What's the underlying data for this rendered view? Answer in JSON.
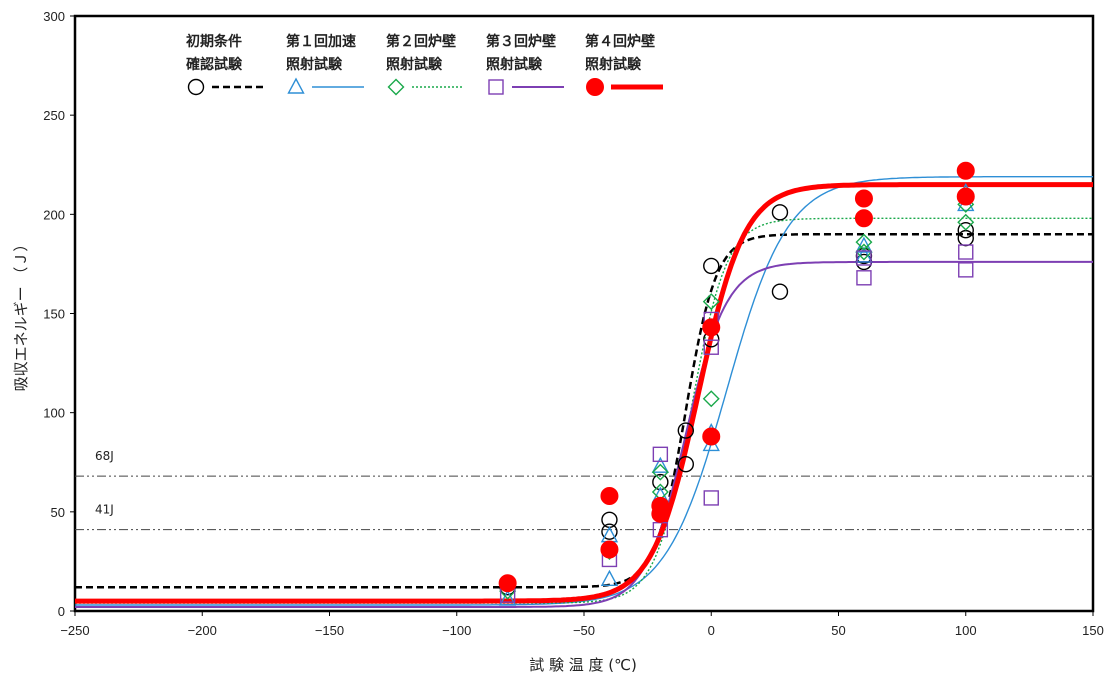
{
  "chart_data": {
    "type": "scatter",
    "xlabel": "試 験 温 度 (℃)",
    "ylabel": "吸収エネルギー （Ｊ）",
    "xlim": [
      -250,
      150
    ],
    "ylim": [
      0,
      300
    ],
    "xticks": [
      -250,
      -200,
      -150,
      -100,
      -50,
      0,
      50,
      100,
      150
    ],
    "yticks": [
      0,
      50,
      100,
      150,
      200,
      250,
      300
    ],
    "xtick_labels": [
      "−250",
      "−200",
      "−150",
      "−100",
      "−50",
      "0",
      "50",
      "100",
      "150"
    ],
    "ytick_labels": [
      "0",
      "50",
      "100",
      "150",
      "200",
      "250",
      "300"
    ],
    "grid": false,
    "legend_position": "top-left",
    "reference_lines": [
      {
        "label": "68J",
        "y": 68
      },
      {
        "label": "41J",
        "y": 41
      }
    ],
    "series": [
      {
        "name": "初期条件確認試験",
        "legend_line1": "初期条件",
        "legend_line2": "確認試験",
        "marker": "circle-open",
        "color": "#000000",
        "line_style": "dashed",
        "points": [
          [
            -80,
            14
          ],
          [
            -80,
            12
          ],
          [
            -40,
            46
          ],
          [
            -40,
            40
          ],
          [
            -20,
            65
          ],
          [
            -10,
            91
          ],
          [
            -10,
            74
          ],
          [
            0,
            174
          ],
          [
            0,
            137
          ],
          [
            27,
            201
          ],
          [
            27,
            161
          ],
          [
            60,
            176
          ],
          [
            60,
            179
          ],
          [
            100,
            192
          ],
          [
            100,
            188
          ]
        ],
        "fit": {
          "lower": 12,
          "upper": 190,
          "t0": -10,
          "c": 12
        }
      },
      {
        "name": "第１回加速照射試験",
        "legend_line1": "第１回加速",
        "legend_line2": "照射試験",
        "marker": "triangle-open",
        "color": "#2e8fd6",
        "line_style": "solid",
        "points": [
          [
            -80,
            6
          ],
          [
            -40,
            16
          ],
          [
            -40,
            38
          ],
          [
            -20,
            58
          ],
          [
            -20,
            73
          ],
          [
            0,
            84
          ],
          [
            0,
            90
          ],
          [
            60,
            184
          ],
          [
            60,
            179
          ],
          [
            100,
            211
          ],
          [
            100,
            205
          ]
        ],
        "fit": {
          "lower": 3,
          "upper": 219,
          "t0": 6,
          "c": 24
        }
      },
      {
        "name": "第２回炉壁照射試験",
        "legend_line1": "第２回炉壁",
        "legend_line2": "照射試験",
        "marker": "diamond-open",
        "color": "#19a84a",
        "line_style": "dotted",
        "points": [
          [
            -80,
            10
          ],
          [
            -40,
            30
          ],
          [
            -20,
            60
          ],
          [
            -20,
            70
          ],
          [
            0,
            156
          ],
          [
            0,
            107
          ],
          [
            60,
            186
          ],
          [
            60,
            181
          ],
          [
            100,
            205
          ],
          [
            100,
            196
          ]
        ],
        "fit": {
          "lower": 4,
          "upper": 198,
          "t0": -8,
          "c": 14
        }
      },
      {
        "name": "第３回炉壁照射試験",
        "legend_line1": "第３回炉壁",
        "legend_line2": "照射試験",
        "marker": "square-open",
        "color": "#7d3fb3",
        "line_style": "solid",
        "points": [
          [
            -80,
            8
          ],
          [
            -40,
            26
          ],
          [
            -20,
            79
          ],
          [
            -20,
            41
          ],
          [
            0,
            147
          ],
          [
            0,
            133
          ],
          [
            0,
            57
          ],
          [
            60,
            178
          ],
          [
            60,
            168
          ],
          [
            100,
            181
          ],
          [
            100,
            172
          ]
        ],
        "fit": {
          "lower": 2,
          "upper": 176,
          "t0": -10,
          "c": 16
        }
      },
      {
        "name": "第４回炉壁照射試験",
        "legend_line1": "第４回炉壁",
        "legend_line2": "照射試験",
        "marker": "circle-filled",
        "color": "#ff0000",
        "line_style": "solid-thick",
        "points": [
          [
            -80,
            14
          ],
          [
            -40,
            58
          ],
          [
            -40,
            31
          ],
          [
            -20,
            53
          ],
          [
            -20,
            49
          ],
          [
            0,
            143
          ],
          [
            0,
            88
          ],
          [
            60,
            208
          ],
          [
            60,
            198
          ],
          [
            100,
            222
          ],
          [
            100,
            209
          ]
        ],
        "fit": {
          "lower": 5,
          "upper": 215,
          "t0": -5,
          "c": 18
        }
      }
    ]
  }
}
